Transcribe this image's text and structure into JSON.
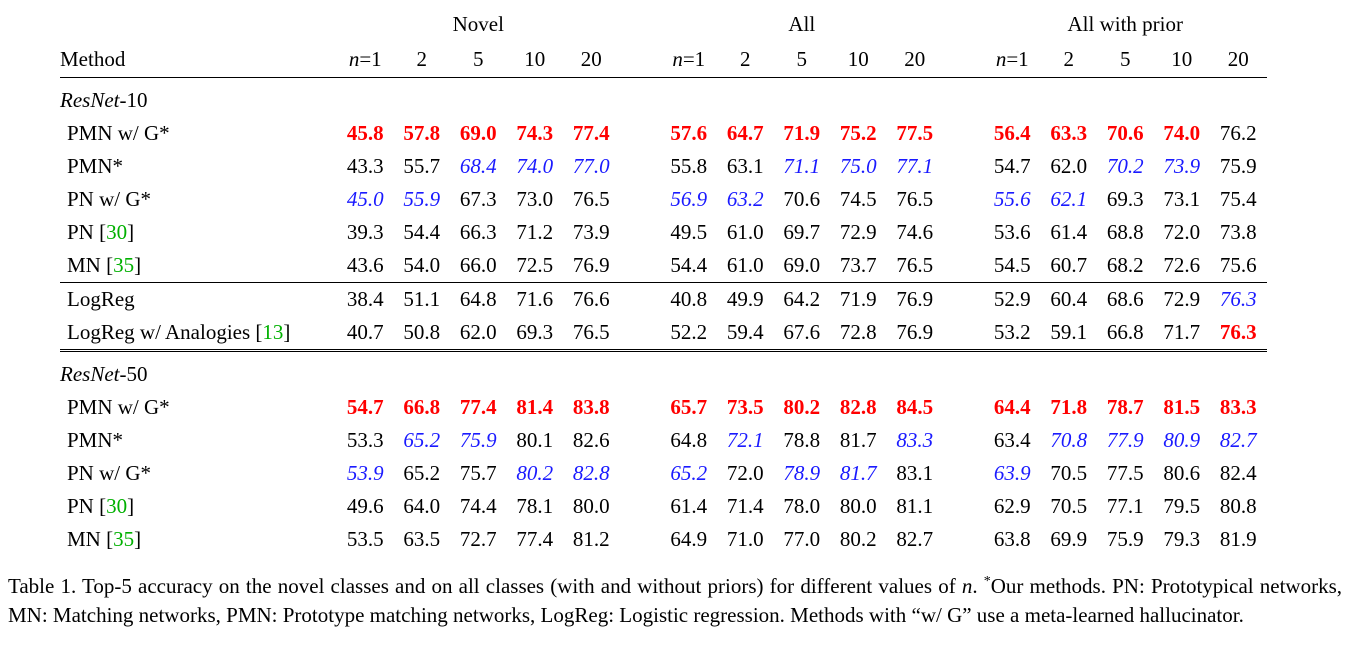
{
  "table": {
    "group_headers": [
      "Novel",
      "All",
      "All with prior"
    ],
    "method_header": "Method",
    "n_labels": [
      "n=1",
      "2",
      "5",
      "10",
      "20"
    ],
    "sections": [
      {
        "backbone_italic": "ResNet",
        "backbone_suffix": "-10",
        "rows": [
          {
            "name": "PMN w/ G*",
            "cite": "",
            "values": [
              "45.8",
              "57.8",
              "69.0",
              "74.3",
              "77.4",
              "57.6",
              "64.7",
              "71.9",
              "75.2",
              "77.5",
              "56.4",
              "63.3",
              "70.6",
              "74.0",
              "76.2"
            ],
            "styles": [
              "b",
              "b",
              "b",
              "b",
              "b",
              "b",
              "b",
              "b",
              "b",
              "b",
              "b",
              "b",
              "b",
              "b",
              ""
            ]
          },
          {
            "name": "PMN*",
            "cite": "",
            "values": [
              "43.3",
              "55.7",
              "68.4",
              "74.0",
              "77.0",
              "55.8",
              "63.1",
              "71.1",
              "75.0",
              "77.1",
              "54.7",
              "62.0",
              "70.2",
              "73.9",
              "75.9"
            ],
            "styles": [
              "",
              "",
              "s",
              "s",
              "s",
              "",
              "",
              "s",
              "s",
              "s",
              "",
              "",
              "s",
              "s",
              ""
            ]
          },
          {
            "name": "PN w/ G*",
            "cite": "",
            "values": [
              "45.0",
              "55.9",
              "67.3",
              "73.0",
              "76.5",
              "56.9",
              "63.2",
              "70.6",
              "74.5",
              "76.5",
              "55.6",
              "62.1",
              "69.3",
              "73.1",
              "75.4"
            ],
            "styles": [
              "s",
              "s",
              "",
              "",
              "",
              "s",
              "s",
              "",
              "",
              "",
              "s",
              "s",
              "",
              "",
              ""
            ]
          },
          {
            "name": "PN ",
            "cite": "30",
            "values": [
              "39.3",
              "54.4",
              "66.3",
              "71.2",
              "73.9",
              "49.5",
              "61.0",
              "69.7",
              "72.9",
              "74.6",
              "53.6",
              "61.4",
              "68.8",
              "72.0",
              "73.8"
            ],
            "styles": [
              "",
              "",
              "",
              "",
              "",
              "",
              "",
              "",
              "",
              "",
              "",
              "",
              "",
              "",
              ""
            ]
          },
          {
            "name": "MN ",
            "cite": "35",
            "values": [
              "43.6",
              "54.0",
              "66.0",
              "72.5",
              "76.9",
              "54.4",
              "61.0",
              "69.0",
              "73.7",
              "76.5",
              "54.5",
              "60.7",
              "68.2",
              "72.6",
              "75.6"
            ],
            "styles": [
              "",
              "",
              "",
              "",
              "",
              "",
              "",
              "",
              "",
              "",
              "",
              "",
              "",
              "",
              ""
            ]
          }
        ],
        "extra_rows": [
          {
            "name": "LogReg",
            "cite": "",
            "values": [
              "38.4",
              "51.1",
              "64.8",
              "71.6",
              "76.6",
              "40.8",
              "49.9",
              "64.2",
              "71.9",
              "76.9",
              "52.9",
              "60.4",
              "68.6",
              "72.9",
              "76.3"
            ],
            "styles": [
              "",
              "",
              "",
              "",
              "",
              "",
              "",
              "",
              "",
              "",
              "",
              "",
              "",
              "",
              "s"
            ]
          },
          {
            "name": "LogReg w/ Analogies ",
            "cite": "13",
            "values": [
              "40.7",
              "50.8",
              "62.0",
              "69.3",
              "76.5",
              "52.2",
              "59.4",
              "67.6",
              "72.8",
              "76.9",
              "53.2",
              "59.1",
              "66.8",
              "71.7",
              "76.3"
            ],
            "styles": [
              "",
              "",
              "",
              "",
              "",
              "",
              "",
              "",
              "",
              "",
              "",
              "",
              "",
              "",
              "b"
            ]
          }
        ]
      },
      {
        "backbone_italic": "ResNet",
        "backbone_suffix": "-50",
        "rows": [
          {
            "name": "PMN w/ G*",
            "cite": "",
            "values": [
              "54.7",
              "66.8",
              "77.4",
              "81.4",
              "83.8",
              "65.7",
              "73.5",
              "80.2",
              "82.8",
              "84.5",
              "64.4",
              "71.8",
              "78.7",
              "81.5",
              "83.3"
            ],
            "styles": [
              "b",
              "b",
              "b",
              "b",
              "b",
              "b",
              "b",
              "b",
              "b",
              "b",
              "b",
              "b",
              "b",
              "b",
              "b"
            ]
          },
          {
            "name": "PMN*",
            "cite": "",
            "values": [
              "53.3",
              "65.2",
              "75.9",
              "80.1",
              "82.6",
              "64.8",
              "72.1",
              "78.8",
              "81.7",
              "83.3",
              "63.4",
              "70.8",
              "77.9",
              "80.9",
              "82.7"
            ],
            "styles": [
              "",
              "s",
              "s",
              "",
              "",
              "",
              "s",
              "",
              "",
              "s",
              "",
              "s",
              "s",
              "s",
              "s"
            ]
          },
          {
            "name": "PN w/ G*",
            "cite": "",
            "values": [
              "53.9",
              "65.2",
              "75.7",
              "80.2",
              "82.8",
              "65.2",
              "72.0",
              "78.9",
              "81.7",
              "83.1",
              "63.9",
              "70.5",
              "77.5",
              "80.6",
              "82.4"
            ],
            "styles": [
              "s",
              "",
              "",
              "s",
              "s",
              "s",
              "",
              "s",
              "s",
              "",
              "s",
              "",
              "",
              "",
              ""
            ]
          },
          {
            "name": "PN ",
            "cite": "30",
            "values": [
              "49.6",
              "64.0",
              "74.4",
              "78.1",
              "80.0",
              "61.4",
              "71.4",
              "78.0",
              "80.0",
              "81.1",
              "62.9",
              "70.5",
              "77.1",
              "79.5",
              "80.8"
            ],
            "styles": [
              "",
              "",
              "",
              "",
              "",
              "",
              "",
              "",
              "",
              "",
              "",
              "",
              "",
              "",
              ""
            ]
          },
          {
            "name": "MN ",
            "cite": "35",
            "values": [
              "53.5",
              "63.5",
              "72.7",
              "77.4",
              "81.2",
              "64.9",
              "71.0",
              "77.0",
              "80.2",
              "82.7",
              "63.8",
              "69.9",
              "75.9",
              "79.3",
              "81.9"
            ],
            "styles": [
              "",
              "",
              "",
              "",
              "",
              "",
              "",
              "",
              "",
              "",
              "",
              "",
              "",
              "",
              ""
            ]
          }
        ],
        "extra_rows": []
      }
    ]
  },
  "caption": {
    "label": "Table 1.",
    "text_before_n": " Top-5 accuracy on the novel classes and on all classes (with and without priors) for different values of ",
    "n_symbol": "n",
    "text_mid": ". ",
    "star": "*",
    "text_after": "Our methods. PN: Prototypical networks, MN: Matching networks, PMN: Prototype matching networks, LogReg: Logistic regression. Methods with “w/ G” use a meta-learned hallucinator."
  }
}
